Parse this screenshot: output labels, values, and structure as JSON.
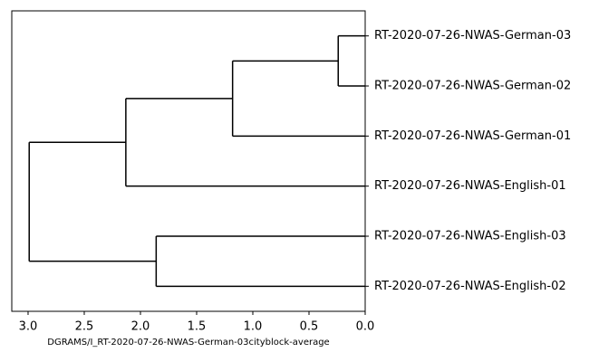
{
  "chart_data": {
    "type": "dendrogram",
    "xlabel": "DGRAMS/I_RT-2020-07-26-NWAS-German-03cityblock-average",
    "xlim": [
      3.145,
      0
    ],
    "xticks": [
      {
        "value": 3,
        "label": "3.0"
      },
      2.5,
      {
        "value": 2,
        "label": "2.0"
      },
      1.5,
      {
        "value": 1,
        "label": "1.0"
      },
      0.5,
      {
        "value": 0,
        "label": "0.0"
      }
    ],
    "color": "#000000",
    "tree": {
      "height": 2.99,
      "children": [
        {
          "height": 2.13,
          "children": [
            {
              "height": 1.18,
              "children": [
                {
                  "height": 0.24,
                  "children": [
                    {
                      "label": "RT-2020-07-26-NWAS-German-03"
                    },
                    {
                      "label": "RT-2020-07-26-NWAS-German-02"
                    }
                  ]
                },
                {
                  "label": "RT-2020-07-26-NWAS-German-01"
                }
              ]
            },
            {
              "label": "RT-2020-07-26-NWAS-English-01"
            }
          ]
        },
        {
          "height": 1.86,
          "children": [
            {
              "label": "RT-2020-07-26-NWAS-English-03"
            },
            {
              "label": "RT-2020-07-26-NWAS-English-02"
            }
          ]
        }
      ]
    }
  }
}
